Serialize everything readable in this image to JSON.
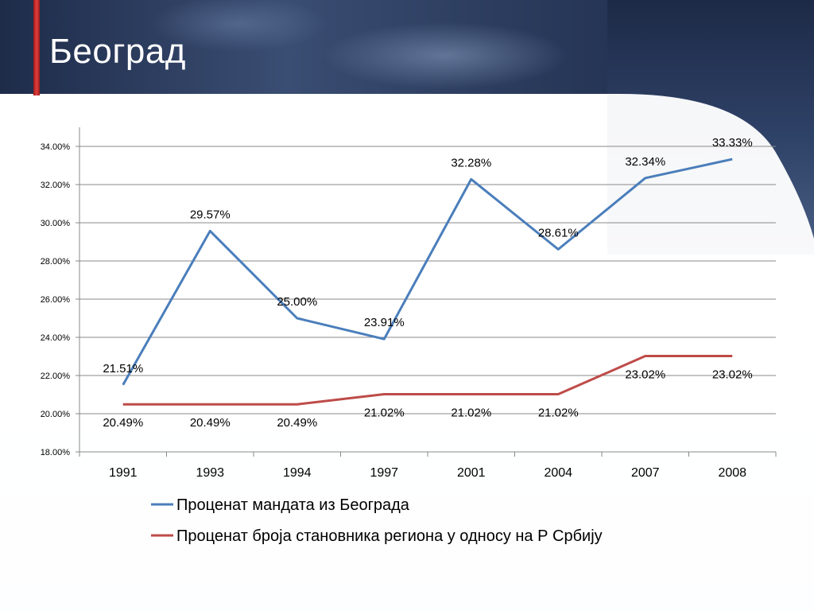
{
  "title": "Београд",
  "colors": {
    "series_blue": "#4a7ebb",
    "series_red": "#be4b48",
    "grid": "#888888"
  },
  "chart_data": {
    "type": "line",
    "categories": [
      "1991",
      "1993",
      "1994",
      "1997",
      "2001",
      "2004",
      "2007",
      "2008"
    ],
    "ylim": [
      0.18,
      0.34
    ],
    "yticks": [
      0.18,
      0.2,
      0.22,
      0.24,
      0.26,
      0.28,
      0.3,
      0.32,
      0.34
    ],
    "ytick_labels": [
      "18.00%",
      "20.00%",
      "22.00%",
      "24.00%",
      "26.00%",
      "28.00%",
      "30.00%",
      "32.00%",
      "34.00%"
    ],
    "grid": true,
    "legend_position": "bottom",
    "series": [
      {
        "name": "Проценат мандата из Београда",
        "color": "#4a7ebb",
        "values": [
          0.2151,
          0.2957,
          0.25,
          0.2391,
          0.3228,
          0.2861,
          0.3234,
          0.3333
        ],
        "labels": [
          "21.51%",
          "29.57%",
          "25.00%",
          "23.91%",
          "32.28%",
          "28.61%",
          "32.34%",
          "33.33%"
        ]
      },
      {
        "name": "Проценат броја становника региона у односу на Р Србију",
        "color": "#be4b48",
        "values": [
          0.2049,
          0.2049,
          0.2049,
          0.2102,
          0.2102,
          0.2102,
          0.2302,
          0.2302
        ],
        "labels": [
          "20.49%",
          "20.49%",
          "20.49%",
          "21.02%",
          "21.02%",
          "21.02%",
          "23.02%",
          "23.02%"
        ]
      }
    ]
  }
}
